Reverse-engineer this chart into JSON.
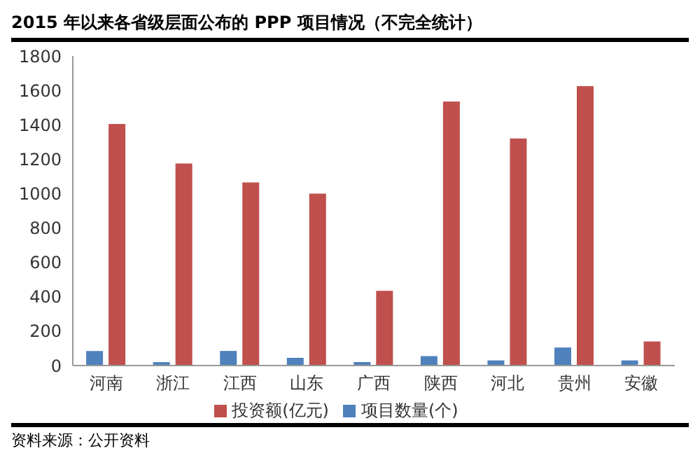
{
  "chart_data": {
    "type": "bar",
    "title": "2015 年以来各省级层面公布的 PPP 项目情况（不完全统计）",
    "categories": [
      "河南",
      "浙江",
      "江西",
      "山东",
      "广西",
      "陕西",
      "河北",
      "贵州",
      "安徽"
    ],
    "series": [
      {
        "name": "项目数量(个)",
        "color": "#4f81bd",
        "values": [
          85,
          20,
          85,
          45,
          20,
          55,
          30,
          105,
          30
        ]
      },
      {
        "name": "投资额(亿元)",
        "color": "#c0504d",
        "values": [
          1405,
          1175,
          1065,
          1000,
          435,
          1535,
          1320,
          1625,
          140
        ]
      }
    ],
    "ylim": [
      0,
      1800
    ],
    "yticks": [
      0,
      200,
      400,
      600,
      800,
      1000,
      1200,
      1400,
      1600,
      1800
    ],
    "grid": false,
    "legend": "bottom",
    "annotations": [
      "资料来源：公开资料"
    ]
  }
}
